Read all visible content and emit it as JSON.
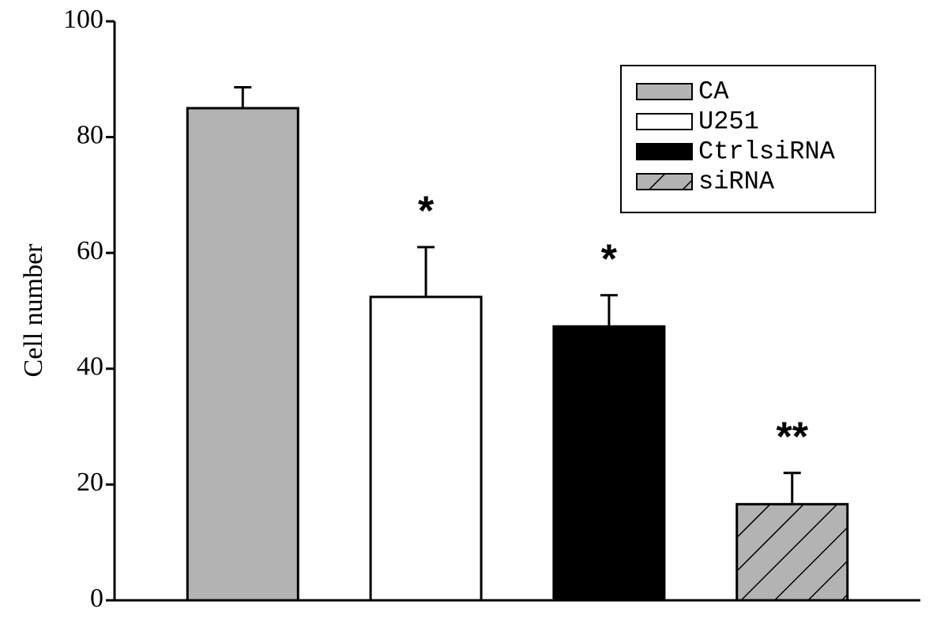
{
  "chart_data": {
    "type": "bar",
    "y_label": "Cell number",
    "categories": [
      null
    ],
    "series": [
      {
        "name": "CA",
        "color": "#b3b3b3",
        "values": [
          85
        ],
        "errors": [
          3.6
        ]
      },
      {
        "name": "U251",
        "color": "#ffffff",
        "values": [
          52.4
        ],
        "errors": [
          8.6
        ],
        "annotation": "*"
      },
      {
        "name": "CtrlsiRNA",
        "color": "#000000",
        "values": [
          47.3
        ],
        "errors": [
          5.4
        ],
        "annotation": "*"
      },
      {
        "name": "siRNA",
        "color": "#b3b3b3",
        "pattern": "hatch",
        "values": [
          16.6
        ],
        "errors": [
          5.4
        ],
        "annotation": "**"
      }
    ],
    "ylim": [
      0,
      100
    ],
    "yticks": [
      0,
      20,
      40,
      60,
      80,
      100
    ],
    "grid": false,
    "legend": "upper right"
  }
}
